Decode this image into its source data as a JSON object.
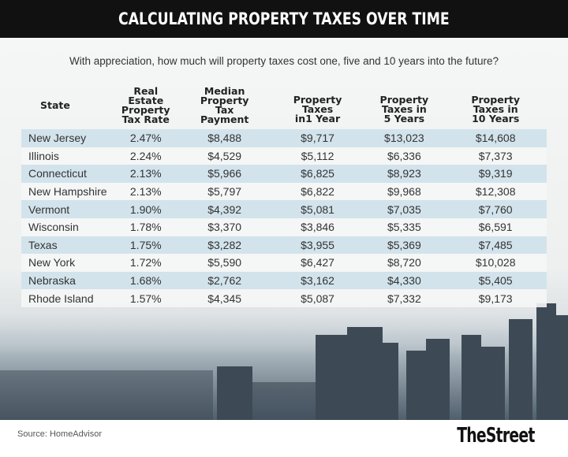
{
  "title": "CALCULATING PROPERTY TAXES OVER TIME",
  "subtitle": "With appreciation, how much will property taxes cost one, five and 10 years into the future?",
  "chart_data": {
    "type": "table",
    "columns": [
      "State",
      "Real Estate Property Tax Rate",
      "Median Property Tax Payment",
      "Property Taxes in1 Year",
      "Property Taxes in 5 Years",
      "Property Taxes in 10 Years"
    ],
    "rows": [
      [
        "New Jersey",
        "2.47%",
        "$8,488",
        "$9,717",
        "$13,023",
        "$14,608"
      ],
      [
        "Illinois",
        "2.24%",
        "$4,529",
        "$5,112",
        "$6,336",
        "$7,373"
      ],
      [
        "Connecticut",
        "2.13%",
        "$5,966",
        "$6,825",
        "$8,923",
        "$9,319"
      ],
      [
        "New Hampshire",
        "2.13%",
        "$5,797",
        "$6,822",
        "$9,968",
        "$12,308"
      ],
      [
        "Vermont",
        "1.90%",
        "$4,392",
        "$5,081",
        "$7,035",
        "$7,760"
      ],
      [
        "Wisconsin",
        "1.78%",
        "$3,370",
        "$3,846",
        "$5,335",
        "$6,591"
      ],
      [
        "Texas",
        "1.75%",
        "$3,282",
        "$3,955",
        "$5,369",
        "$7,485"
      ],
      [
        "New York",
        "1.72%",
        "$5,590",
        "$6,427",
        "$8,720",
        "$10,028"
      ],
      [
        "Nebraska",
        "1.68%",
        "$2,762",
        "$3,162",
        "$4,330",
        "$5,405"
      ],
      [
        "Rhode Island",
        "1.57%",
        "$4,345",
        "$5,087",
        "$7,332",
        "$9,173"
      ]
    ],
    "row_band_color": "#d2e3ec"
  },
  "footer": {
    "source": "Source: HomeAdvisor",
    "logo": "TheStreet"
  }
}
